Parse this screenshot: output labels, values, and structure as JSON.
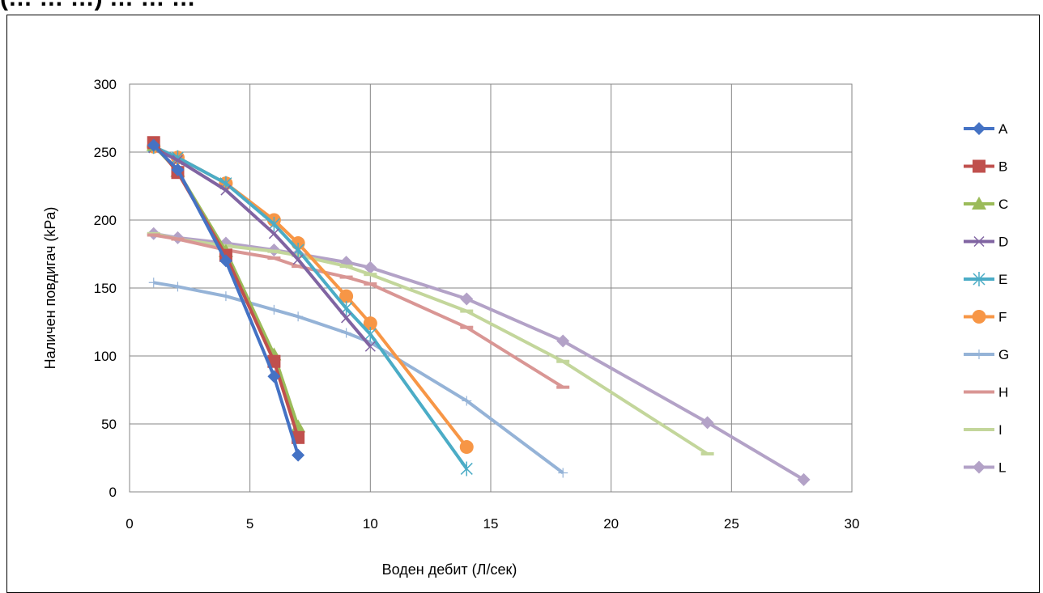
{
  "page_title": "(… … …) … … …",
  "chart_data": {
    "type": "line",
    "title": "",
    "xlabel": "Воден дебит (Л/сек)",
    "ylabel": "Наличен повдигач (kPa)",
    "xlim": [
      0,
      30
    ],
    "ylim": [
      0,
      300
    ],
    "x_ticks": [
      0,
      5,
      10,
      15,
      20,
      25,
      30
    ],
    "y_ticks": [
      0,
      50,
      100,
      150,
      200,
      250,
      300
    ],
    "grid": true,
    "legend_position": "right",
    "series": [
      {
        "name": "A",
        "color": "#4472C4",
        "marker": "diamond",
        "points": [
          [
            1,
            255
          ],
          [
            2,
            237
          ],
          [
            4,
            170
          ],
          [
            6,
            85
          ],
          [
            7,
            27
          ]
        ]
      },
      {
        "name": "B",
        "color": "#C0504D",
        "marker": "square",
        "points": [
          [
            1,
            257
          ],
          [
            2,
            235
          ],
          [
            4,
            174
          ],
          [
            6,
            96
          ],
          [
            7,
            40
          ]
        ]
      },
      {
        "name": "C",
        "color": "#9BBB59",
        "marker": "triangle",
        "points": [
          [
            1,
            255
          ],
          [
            2,
            236
          ],
          [
            4,
            177
          ],
          [
            6,
            101
          ],
          [
            7,
            48
          ]
        ]
      },
      {
        "name": "D",
        "color": "#8064A2",
        "marker": "x",
        "points": [
          [
            1,
            253
          ],
          [
            2,
            244
          ],
          [
            4,
            222
          ],
          [
            6,
            190
          ],
          [
            7,
            171
          ],
          [
            9,
            128
          ],
          [
            10,
            107
          ]
        ]
      },
      {
        "name": "E",
        "color": "#4BACC6",
        "marker": "star",
        "points": [
          [
            1,
            254
          ],
          [
            2,
            246
          ],
          [
            4,
            227
          ],
          [
            6,
            197
          ],
          [
            7,
            178
          ],
          [
            9,
            135
          ],
          [
            10,
            116
          ],
          [
            14,
            17
          ]
        ]
      },
      {
        "name": "F",
        "color": "#F79646",
        "marker": "circle",
        "points": [
          [
            1,
            254
          ],
          [
            2,
            246
          ],
          [
            4,
            227
          ],
          [
            6,
            200
          ],
          [
            7,
            183
          ],
          [
            9,
            144
          ],
          [
            10,
            124
          ],
          [
            14,
            33
          ]
        ]
      },
      {
        "name": "G",
        "color": "#95B3D7",
        "marker": "plus",
        "points": [
          [
            1,
            154
          ],
          [
            2,
            151
          ],
          [
            4,
            144
          ],
          [
            6,
            134
          ],
          [
            7,
            129
          ],
          [
            9,
            117
          ],
          [
            10,
            110
          ],
          [
            14,
            67
          ],
          [
            18,
            14
          ]
        ]
      },
      {
        "name": "H",
        "color": "#D99694",
        "marker": "dash",
        "points": [
          [
            1,
            189
          ],
          [
            2,
            186
          ],
          [
            4,
            178
          ],
          [
            6,
            172
          ],
          [
            7,
            166
          ],
          [
            9,
            158
          ],
          [
            10,
            153
          ],
          [
            14,
            121
          ],
          [
            18,
            77
          ]
        ]
      },
      {
        "name": "I",
        "color": "#C3D69B",
        "marker": "dash",
        "points": [
          [
            1,
            190
          ],
          [
            2,
            186
          ],
          [
            4,
            181
          ],
          [
            6,
            177
          ],
          [
            7,
            174
          ],
          [
            9,
            166
          ],
          [
            10,
            160
          ],
          [
            14,
            133
          ],
          [
            18,
            96
          ],
          [
            24,
            28
          ]
        ]
      },
      {
        "name": "L",
        "color": "#B3A2C7",
        "marker": "diamond",
        "points": [
          [
            1,
            190
          ],
          [
            2,
            187
          ],
          [
            4,
            183
          ],
          [
            6,
            178
          ],
          [
            7,
            175
          ],
          [
            9,
            169
          ],
          [
            10,
            165
          ],
          [
            14,
            142
          ],
          [
            18,
            111
          ],
          [
            24,
            51
          ],
          [
            28,
            9
          ]
        ]
      }
    ]
  }
}
